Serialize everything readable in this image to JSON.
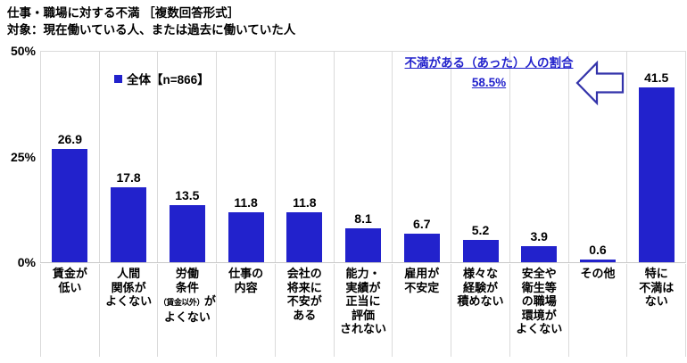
{
  "header": {
    "title_line1": "仕事・職場に対する不満 ［複数回答形式］",
    "title_line2": "対象：現在働いている人、または過去に働いていた人"
  },
  "legend": {
    "label": "全体【n=866】",
    "marker_color": "#2222cc"
  },
  "annotation": {
    "line1": "不満がある（あった）人の割合",
    "line2": "58.5%",
    "text_color": "#2222cc",
    "arrow_outline_color": "#3333aa"
  },
  "y_axis": {
    "ticks": [
      "50%",
      "25%",
      "0%"
    ]
  },
  "chart_data": {
    "type": "bar",
    "title": "仕事・職場に対する不満 ［複数回答形式］",
    "subtitle": "対象：現在働いている人、または過去に働いていた人",
    "series_name": "全体【n=866】",
    "categories": [
      "賃金が低い",
      "人間関係がよくない",
      "労働条件（賃金以外）がよくない",
      "仕事の内容",
      "会社の将来に不安がある",
      "能力・実績が正当に評価されない",
      "雇用が不安定",
      "様々な経験が積めない",
      "安全や衛生等の職場環境がよくない",
      "その他",
      "特に不満はない"
    ],
    "category_label_lines": [
      [
        "賃金が",
        "低い"
      ],
      [
        "人間",
        "関係が",
        "よくない"
      ],
      [
        "労働",
        "条件",
        {
          "parts": [
            {
              "text": "（賃金以外）",
              "small": true
            },
            {
              "text": "が",
              "small": false
            }
          ]
        },
        "よくない"
      ],
      [
        "仕事の",
        "内容"
      ],
      [
        "会社の",
        "将来に",
        "不安が",
        "ある"
      ],
      [
        "能力・",
        "実績が",
        "正当に",
        "評価",
        "されない"
      ],
      [
        "雇用が",
        "不安定"
      ],
      [
        "様々な",
        "経験が",
        "積めない"
      ],
      [
        "安全や",
        "衛生等",
        "の職場",
        "環境が",
        "よくない"
      ],
      [
        "その他"
      ],
      [
        "特に",
        "不満は",
        "ない"
      ]
    ],
    "values": [
      26.9,
      17.8,
      13.5,
      11.8,
      11.8,
      8.1,
      6.7,
      5.2,
      3.9,
      0.6,
      41.5
    ],
    "ylabel": "",
    "xlabel": "",
    "ylim": [
      0,
      50
    ],
    "y_tick_labels": [
      "0%",
      "25%",
      "50%"
    ],
    "grid": true,
    "legend_position": "top-left-inside",
    "bar_color": "#2222cc",
    "annotation_value": "58.5%"
  }
}
